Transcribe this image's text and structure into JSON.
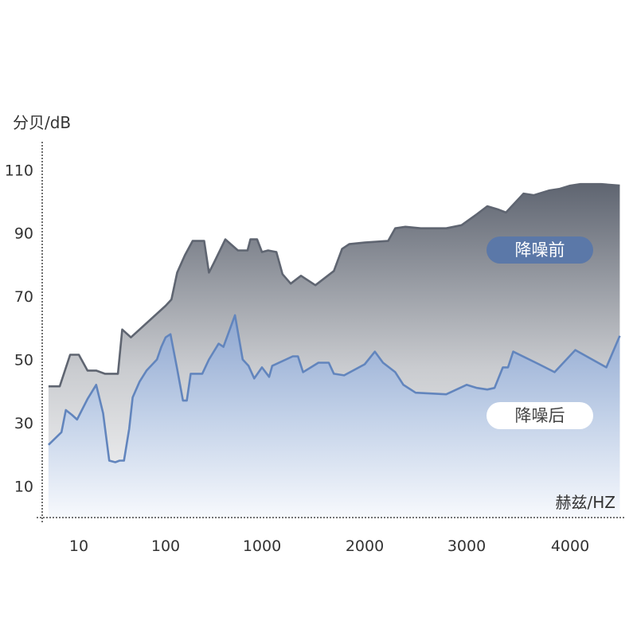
{
  "chart_data": {
    "type": "area",
    "ylabel": "分贝/dB",
    "xlabel": "赫兹/HZ",
    "yticks": [
      10,
      30,
      50,
      70,
      90,
      110
    ],
    "xticks": [
      "10",
      "100",
      "1000",
      "2000",
      "3000",
      "4000"
    ],
    "ylim": [
      0,
      118
    ],
    "grid": false,
    "series": [
      {
        "name": "降噪前",
        "color": "#5f6571",
        "legend_bg": "#5b78a8",
        "legend_text_color": "#ffffff",
        "points": [
          [
            -0.35,
            41.5
          ],
          [
            -0.22,
            41.5
          ],
          [
            -0.1,
            51.5
          ],
          [
            0.0,
            51.5
          ],
          [
            0.1,
            46.5
          ],
          [
            0.2,
            46.5
          ],
          [
            0.3,
            45.5
          ],
          [
            0.45,
            45.5
          ],
          [
            0.5,
            59.5
          ],
          [
            0.6,
            57
          ],
          [
            1.0,
            67
          ],
          [
            1.06,
            69
          ],
          [
            1.12,
            77.5
          ],
          [
            1.2,
            83
          ],
          [
            1.28,
            87.5
          ],
          [
            1.4,
            87.5
          ],
          [
            1.45,
            77.5
          ],
          [
            1.5,
            80.5
          ],
          [
            1.62,
            88
          ],
          [
            1.75,
            84.5
          ],
          [
            1.85,
            84.5
          ],
          [
            1.88,
            88
          ],
          [
            1.95,
            88
          ],
          [
            2.0,
            84
          ],
          [
            2.06,
            84.5
          ],
          [
            2.14,
            84
          ],
          [
            2.2,
            77
          ],
          [
            2.28,
            74
          ],
          [
            2.38,
            76.5
          ],
          [
            2.52,
            73.5
          ],
          [
            2.7,
            78
          ],
          [
            2.78,
            85
          ],
          [
            2.85,
            86.5
          ],
          [
            3.0,
            87
          ],
          [
            3.23,
            87.5
          ],
          [
            3.3,
            91.5
          ],
          [
            3.4,
            92
          ],
          [
            3.55,
            91.5
          ],
          [
            3.8,
            91.5
          ],
          [
            3.95,
            92.5
          ],
          [
            4.1,
            96
          ],
          [
            4.2,
            98.5
          ],
          [
            4.3,
            97.5
          ],
          [
            4.38,
            96.5
          ],
          [
            4.55,
            102.5
          ],
          [
            4.65,
            102
          ],
          [
            4.8,
            103.5
          ],
          [
            4.9,
            104
          ],
          [
            5.0,
            105
          ],
          [
            5.1,
            105.5
          ],
          [
            5.3,
            105.5
          ],
          [
            5.48,
            105
          ]
        ]
      },
      {
        "name": "降噪后",
        "color": "#6285bd",
        "legend_bg": "#ffffff",
        "legend_text_color": "#444444",
        "points": [
          [
            -0.35,
            23
          ],
          [
            -0.2,
            27
          ],
          [
            -0.15,
            34
          ],
          [
            -0.08,
            32.5
          ],
          [
            -0.02,
            31
          ],
          [
            0.1,
            37.5
          ],
          [
            0.2,
            42
          ],
          [
            0.28,
            33
          ],
          [
            0.35,
            18
          ],
          [
            0.42,
            17.5
          ],
          [
            0.47,
            18
          ],
          [
            0.52,
            18
          ],
          [
            0.58,
            28
          ],
          [
            0.62,
            38
          ],
          [
            0.7,
            43
          ],
          [
            0.78,
            46.5
          ],
          [
            0.9,
            50
          ],
          [
            0.95,
            54
          ],
          [
            1.0,
            57
          ],
          [
            1.05,
            58
          ],
          [
            1.12,
            47
          ],
          [
            1.18,
            37
          ],
          [
            1.22,
            37
          ],
          [
            1.26,
            45.5
          ],
          [
            1.38,
            45.5
          ],
          [
            1.45,
            50
          ],
          [
            1.55,
            55
          ],
          [
            1.6,
            54
          ],
          [
            1.72,
            64
          ],
          [
            1.8,
            50
          ],
          [
            1.86,
            48
          ],
          [
            1.92,
            44
          ],
          [
            2.0,
            47.5
          ],
          [
            2.07,
            44.5
          ],
          [
            2.1,
            48
          ],
          [
            2.3,
            51
          ],
          [
            2.35,
            51
          ],
          [
            2.4,
            46
          ],
          [
            2.55,
            49
          ],
          [
            2.65,
            49
          ],
          [
            2.7,
            45.5
          ],
          [
            2.8,
            45
          ],
          [
            3.0,
            48.5
          ],
          [
            3.1,
            52.5
          ],
          [
            3.18,
            49
          ],
          [
            3.3,
            46
          ],
          [
            3.38,
            42
          ],
          [
            3.5,
            39.5
          ],
          [
            3.8,
            39
          ],
          [
            4.0,
            42
          ],
          [
            4.1,
            41
          ],
          [
            4.2,
            40.5
          ],
          [
            4.27,
            41
          ],
          [
            4.35,
            47.5
          ],
          [
            4.4,
            47.5
          ],
          [
            4.45,
            52.5
          ],
          [
            4.7,
            48.5
          ],
          [
            4.85,
            46
          ],
          [
            5.05,
            53
          ],
          [
            5.35,
            47.5
          ],
          [
            5.48,
            57.5
          ]
        ]
      }
    ]
  }
}
